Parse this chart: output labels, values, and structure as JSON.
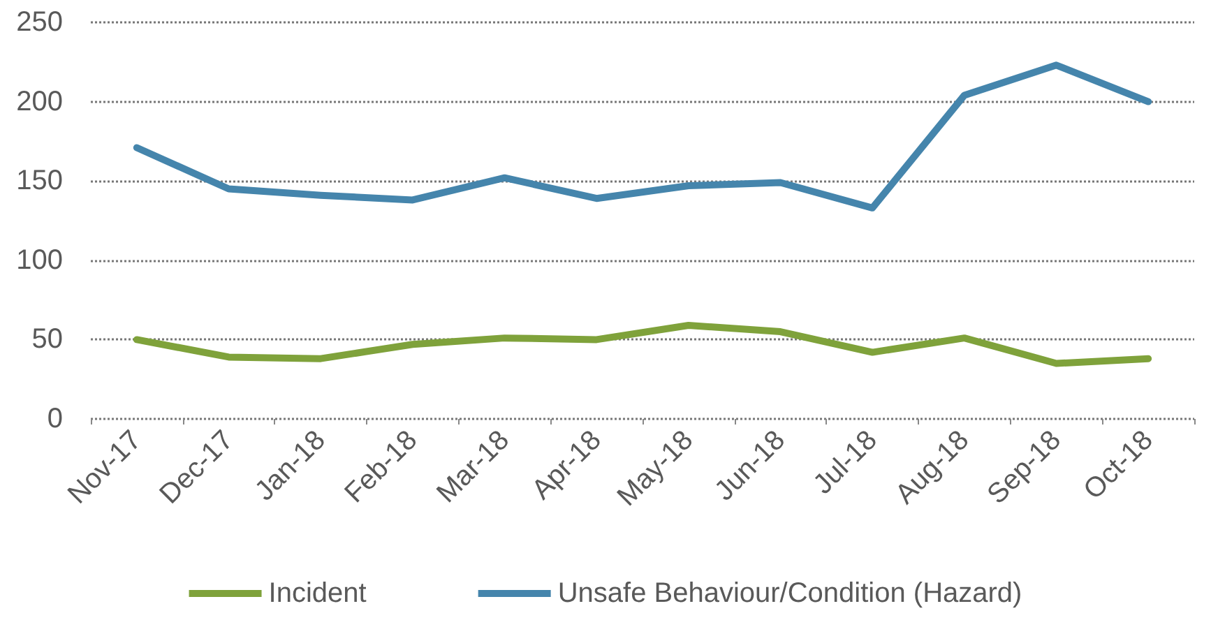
{
  "chart_data": {
    "type": "line",
    "categories": [
      "Nov-17",
      "Dec-17",
      "Jan-18",
      "Feb-18",
      "Mar-18",
      "Apr-18",
      "May-18",
      "Jun-18",
      "Jul-18",
      "Aug-18",
      "Sep-18",
      "Oct-18"
    ],
    "series": [
      {
        "name": "Incident",
        "color": "#7fa23b",
        "values": [
          50,
          39,
          38,
          47,
          51,
          50,
          59,
          55,
          42,
          51,
          35,
          38
        ]
      },
      {
        "name": "Unsafe Behaviour/Condition (Hazard)",
        "color": "#4585ac",
        "values": [
          171,
          145,
          141,
          138,
          152,
          139,
          147,
          149,
          133,
          204,
          223,
          200
        ]
      }
    ],
    "ylim": [
      0,
      250
    ],
    "yticks": [
      0,
      50,
      100,
      150,
      200,
      250
    ],
    "grid": "y",
    "legend": "bottom",
    "marker": "none",
    "line_style": "solid"
  }
}
